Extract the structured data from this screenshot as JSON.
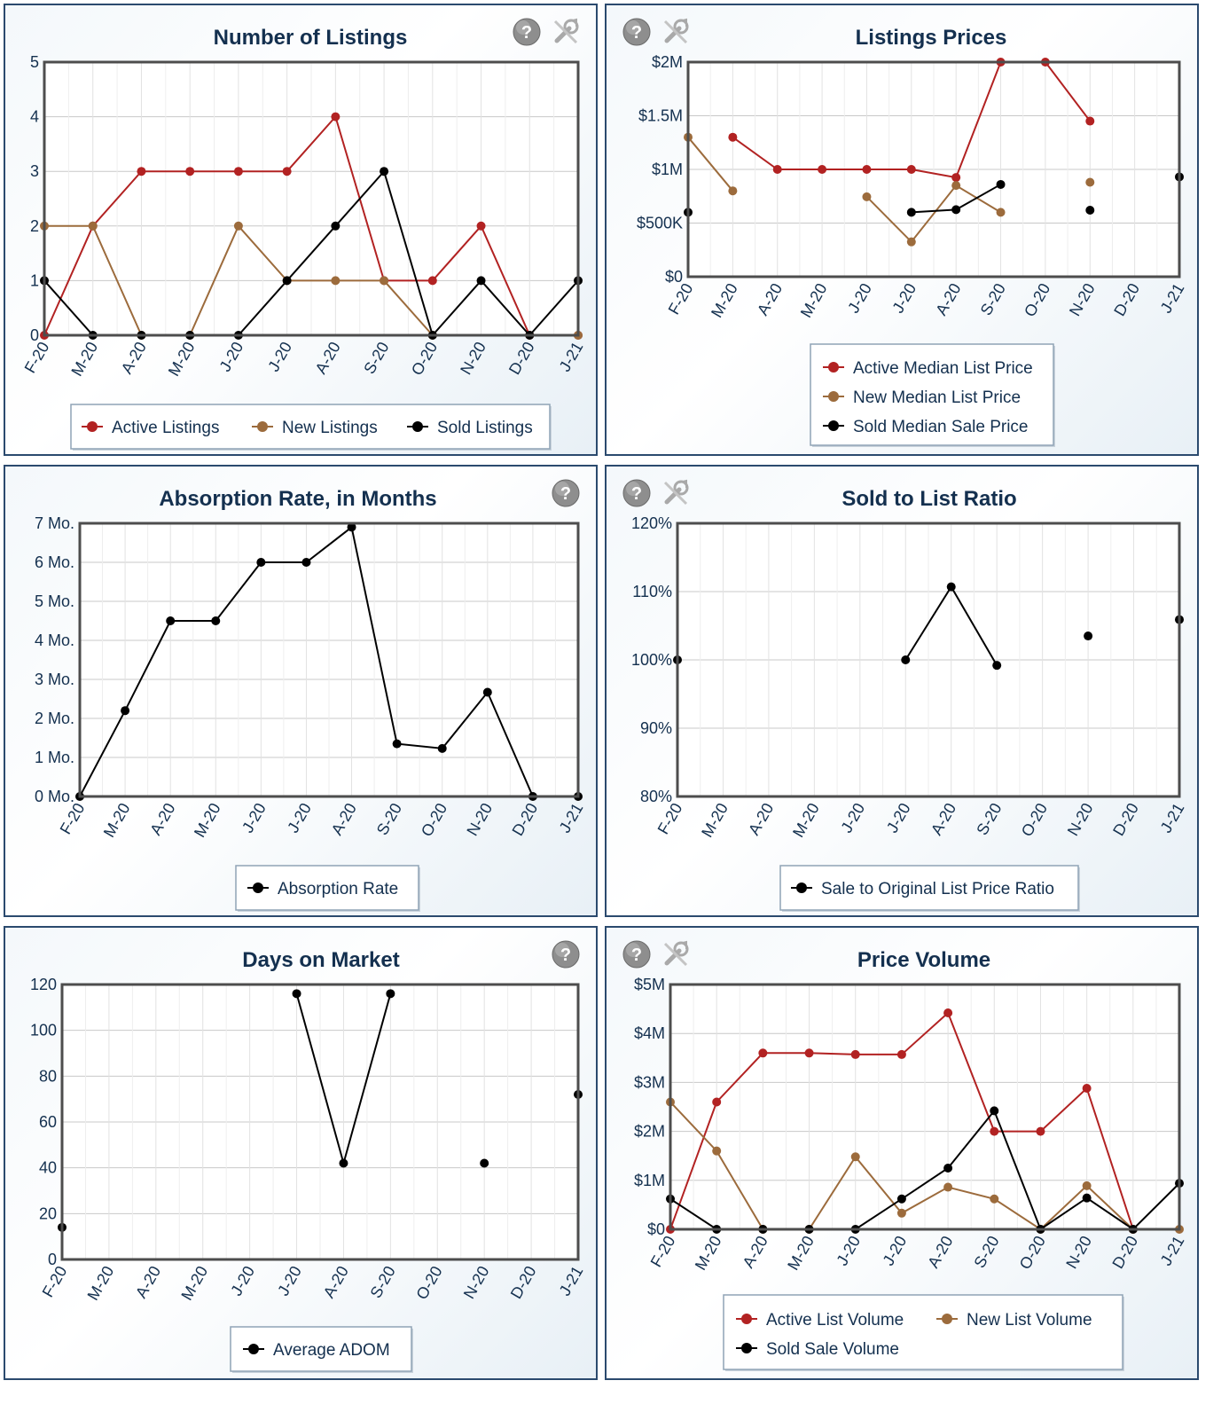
{
  "colors": {
    "active": "#b22222",
    "new": "#9c6b3c",
    "sold": "#000000",
    "title": "#14304f",
    "border": "#2b4a6e",
    "grid": "#cccccc"
  },
  "icons": {
    "help": "help-icon",
    "settings": "wrench-icon"
  },
  "chart_data": [
    {
      "type": "line",
      "title": "Number of Listings",
      "categories": [
        "F-20",
        "M-20",
        "A-20",
        "M-20",
        "J-20",
        "J-20",
        "A-20",
        "S-20",
        "O-20",
        "N-20",
        "D-20",
        "J-21"
      ],
      "ylim": [
        0,
        5
      ],
      "yticks": [
        0,
        1,
        2,
        3,
        4,
        5
      ],
      "ytick_labels": [
        "0",
        "1",
        "2",
        "3",
        "4",
        "5"
      ],
      "grid": true,
      "legend_position": "bottom",
      "series": [
        {
          "name": "Active Listings",
          "color": "#b22222",
          "values": [
            0,
            2,
            3,
            3,
            3,
            3,
            4,
            1,
            1,
            2,
            0,
            0
          ]
        },
        {
          "name": "New Listings",
          "color": "#9c6b3c",
          "values": [
            2,
            2,
            0,
            0,
            2,
            1,
            1,
            1,
            0,
            null,
            null,
            0
          ]
        },
        {
          "name": "Sold Listings",
          "color": "#000000",
          "values": [
            1,
            0,
            0,
            0,
            0,
            1,
            2,
            3,
            0,
            1,
            0,
            1
          ]
        }
      ]
    },
    {
      "type": "line",
      "title": "Listings Prices",
      "categories": [
        "F-20",
        "M-20",
        "A-20",
        "M-20",
        "J-20",
        "J-20",
        "A-20",
        "S-20",
        "O-20",
        "N-20",
        "D-20",
        "J-21"
      ],
      "ylim": [
        0,
        2000000
      ],
      "yticks": [
        0,
        500000,
        1000000,
        1500000,
        2000000
      ],
      "ytick_labels": [
        "$0",
        "$500K",
        "$1M",
        "$1.5M",
        "$2M"
      ],
      "grid": true,
      "legend_position": "bottom",
      "series": [
        {
          "name": "Active Median List Price",
          "color": "#b22222",
          "values": [
            null,
            1300000,
            1000000,
            1000000,
            1000000,
            1000000,
            925000,
            2000000,
            2000000,
            1450000,
            null,
            null
          ]
        },
        {
          "name": "New Median List Price",
          "color": "#9c6b3c",
          "values": [
            1300000,
            800000,
            null,
            null,
            745000,
            325000,
            850000,
            600000,
            null,
            880000,
            null,
            null
          ]
        },
        {
          "name": "Sold Median Sale Price",
          "color": "#000000",
          "values": [
            600000,
            null,
            null,
            null,
            null,
            600000,
            625000,
            860000,
            null,
            620000,
            null,
            930000
          ]
        }
      ]
    },
    {
      "type": "line",
      "title": "Absorption Rate, in Months",
      "categories": [
        "F-20",
        "M-20",
        "A-20",
        "M-20",
        "J-20",
        "J-20",
        "A-20",
        "S-20",
        "O-20",
        "N-20",
        "D-20",
        "J-21"
      ],
      "ylim": [
        0,
        7
      ],
      "yticks": [
        0,
        1,
        2,
        3,
        4,
        5,
        6,
        7
      ],
      "ytick_labels": [
        "0 Mo.",
        "1 Mo.",
        "2 Mo.",
        "3 Mo.",
        "4 Mo.",
        "5 Mo.",
        "6 Mo.",
        "7 Mo."
      ],
      "grid": true,
      "legend_position": "bottom",
      "series": [
        {
          "name": "Absorption Rate",
          "color": "#000000",
          "values": [
            0,
            2.2,
            4.5,
            4.5,
            6,
            6,
            6.9,
            1.35,
            1.23,
            2.67,
            0,
            0
          ]
        }
      ]
    },
    {
      "type": "line",
      "title": "Sold to List Ratio",
      "categories": [
        "F-20",
        "M-20",
        "A-20",
        "M-20",
        "J-20",
        "J-20",
        "A-20",
        "S-20",
        "O-20",
        "N-20",
        "D-20",
        "J-21"
      ],
      "ylim": [
        80,
        120
      ],
      "yticks": [
        80,
        90,
        100,
        110,
        120
      ],
      "ytick_labels": [
        "80%",
        "90%",
        "100%",
        "110%",
        "120%"
      ],
      "grid": true,
      "legend_position": "bottom",
      "series": [
        {
          "name": "Sale to Original List Price Ratio",
          "color": "#000000",
          "values": [
            100,
            null,
            null,
            null,
            null,
            100,
            110.7,
            99.2,
            null,
            103.5,
            null,
            105.9
          ]
        }
      ]
    },
    {
      "type": "line",
      "title": "Days on Market",
      "categories": [
        "F-20",
        "M-20",
        "A-20",
        "M-20",
        "J-20",
        "J-20",
        "A-20",
        "S-20",
        "O-20",
        "N-20",
        "D-20",
        "J-21"
      ],
      "ylim": [
        0,
        120
      ],
      "yticks": [
        0,
        20,
        40,
        60,
        80,
        100,
        120
      ],
      "ytick_labels": [
        "0",
        "20",
        "40",
        "60",
        "80",
        "100",
        "120"
      ],
      "grid": true,
      "legend_position": "bottom",
      "series": [
        {
          "name": "Average ADOM",
          "color": "#000000",
          "values": [
            14,
            null,
            null,
            null,
            null,
            116,
            42,
            116,
            null,
            42,
            null,
            72
          ]
        }
      ]
    },
    {
      "type": "line",
      "title": "Price Volume",
      "categories": [
        "F-20",
        "M-20",
        "A-20",
        "M-20",
        "J-20",
        "J-20",
        "A-20",
        "S-20",
        "O-20",
        "N-20",
        "D-20",
        "J-21"
      ],
      "ylim": [
        0,
        5000000
      ],
      "yticks": [
        0,
        1000000,
        2000000,
        3000000,
        4000000,
        5000000
      ],
      "ytick_labels": [
        "$0",
        "$1M",
        "$2M",
        "$3M",
        "$4M",
        "$5M"
      ],
      "grid": true,
      "legend_position": "bottom",
      "series": [
        {
          "name": "Active List Volume",
          "color": "#b22222",
          "values": [
            0,
            2600000,
            3600000,
            3600000,
            3570000,
            3570000,
            4420000,
            2000000,
            2000000,
            2880000,
            0,
            null
          ]
        },
        {
          "name": "New List Volume",
          "color": "#9c6b3c",
          "values": [
            2600000,
            1600000,
            0,
            0,
            1480000,
            330000,
            860000,
            620000,
            0,
            890000,
            0,
            0
          ]
        },
        {
          "name": "Sold Sale Volume",
          "color": "#000000",
          "values": [
            620000,
            0,
            0,
            0,
            0,
            620000,
            1250000,
            2420000,
            0,
            640000,
            0,
            940000
          ]
        }
      ]
    }
  ]
}
